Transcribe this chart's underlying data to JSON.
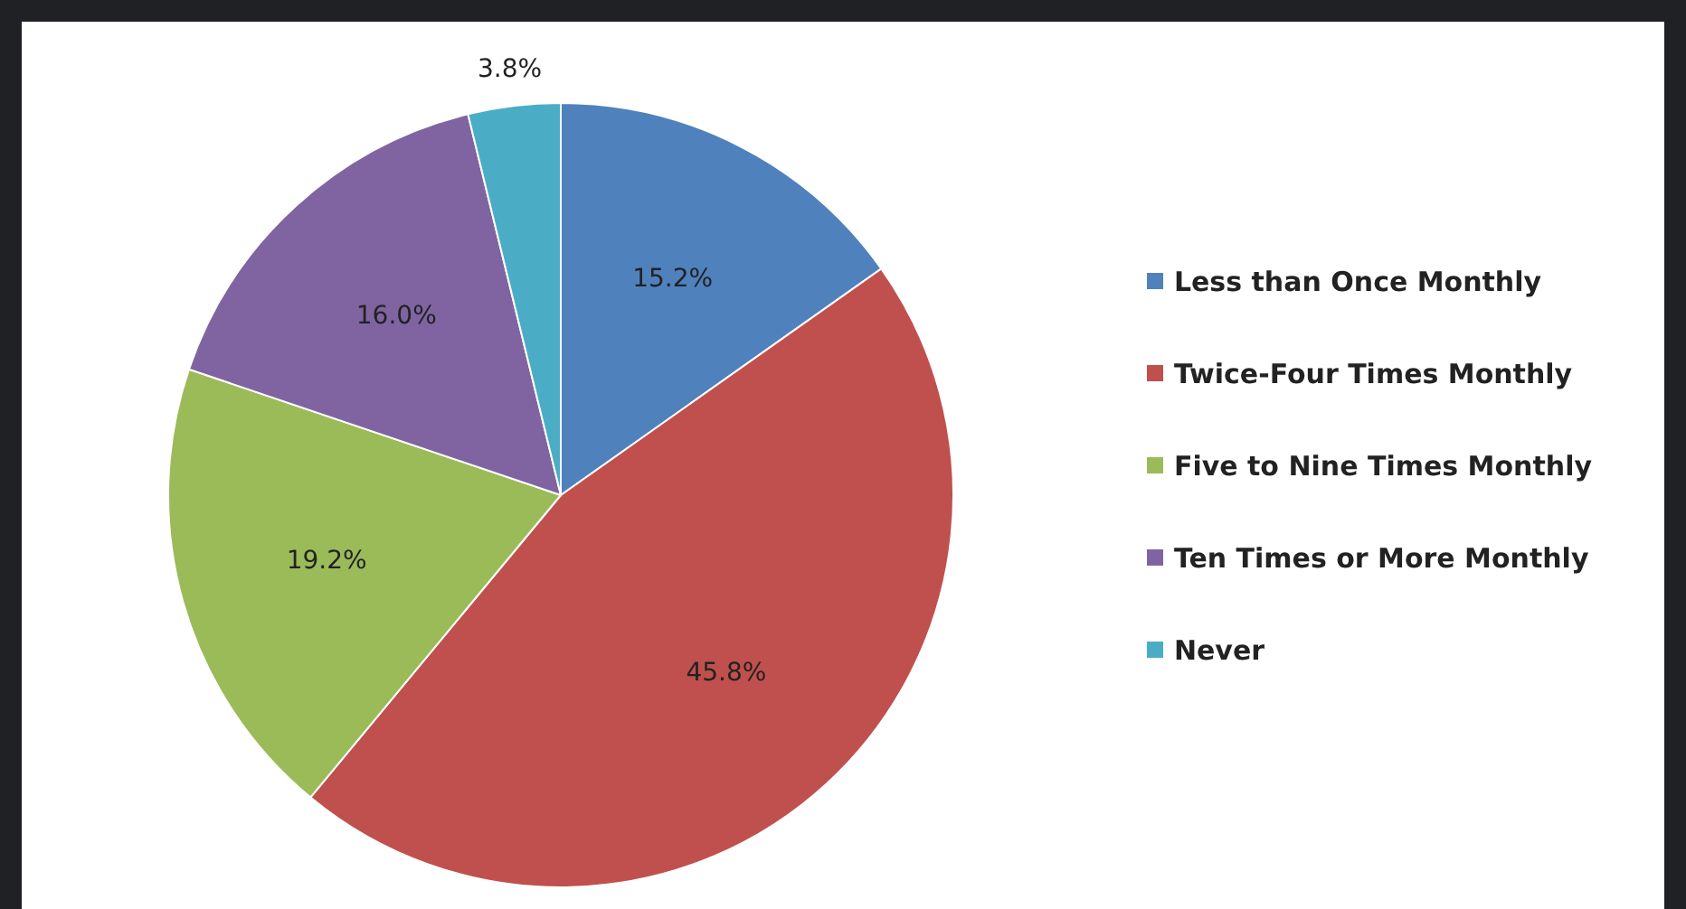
{
  "chart_data": {
    "type": "pie",
    "categories": [
      "Less than Once Monthly",
      "Twice-Four Times Monthly",
      "Five to Nine Times Monthly",
      "Ten Times or More Monthly",
      "Never"
    ],
    "values": [
      15.2,
      45.8,
      19.2,
      16.0,
      3.8
    ],
    "colors": [
      "#4f81bd",
      "#c0504d",
      "#9bbb59",
      "#8064a2",
      "#4bacc6"
    ],
    "value_labels": [
      "15.2%",
      "45.8%",
      "19.2%",
      "16.0%",
      "3.8%"
    ],
    "legend": "right"
  }
}
